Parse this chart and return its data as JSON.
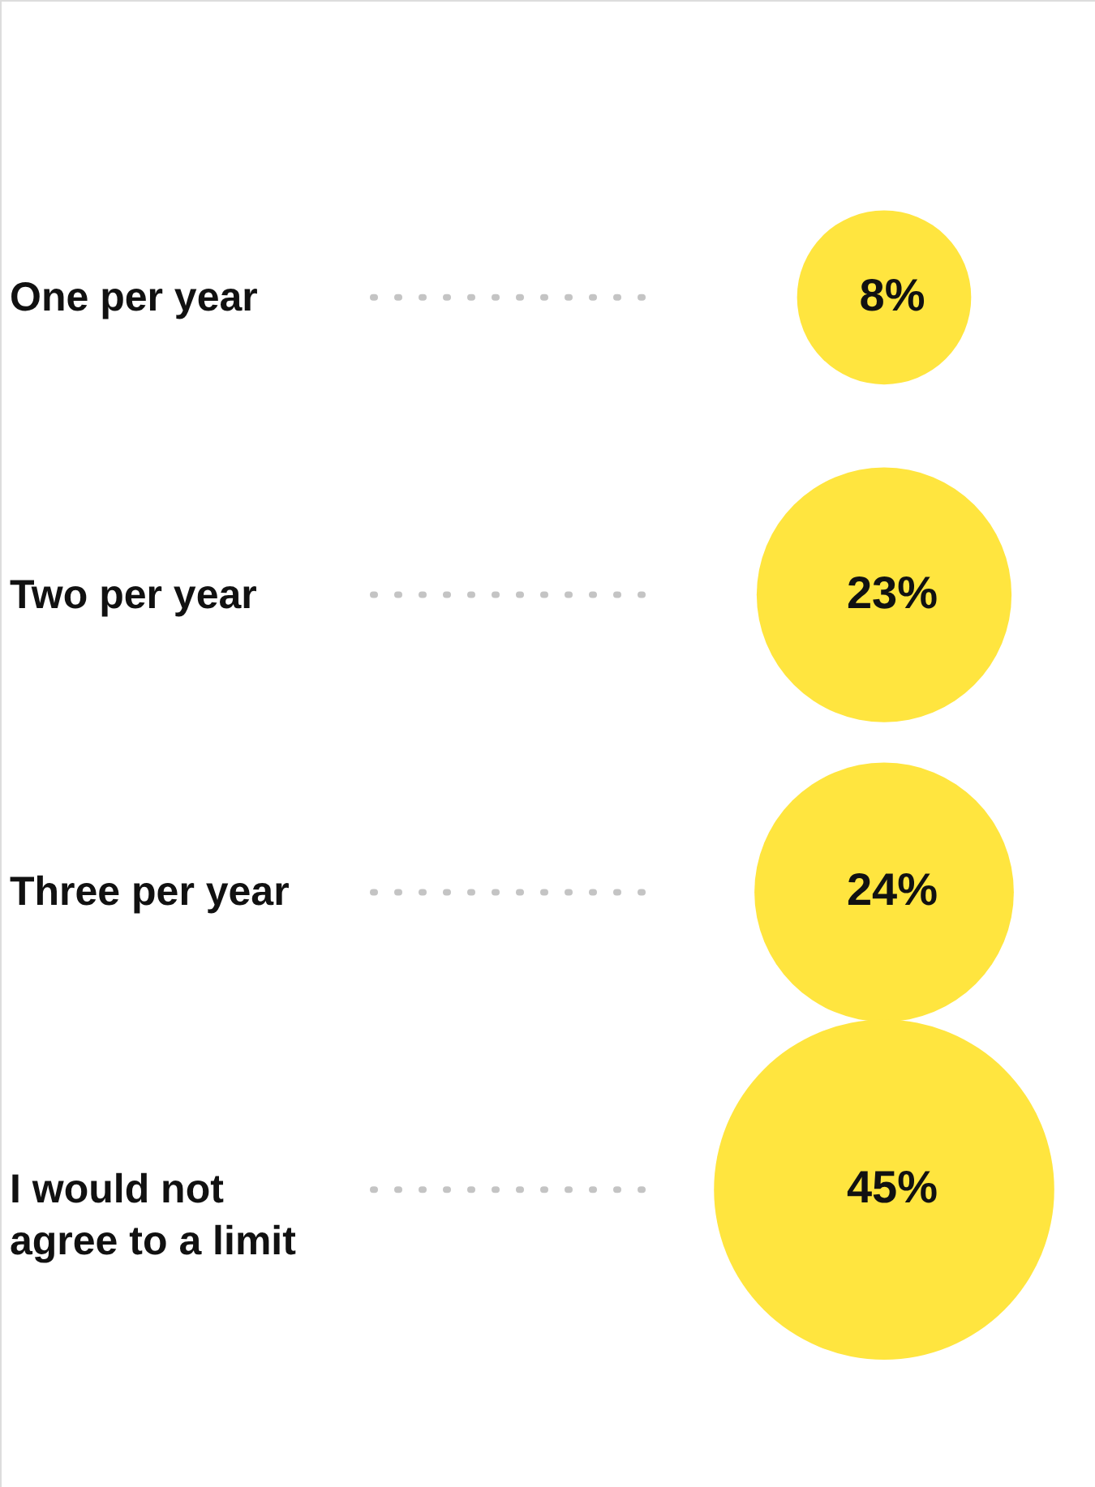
{
  "chart_data": {
    "type": "other",
    "categories": [
      "One per year",
      "Two per year",
      "Three per year",
      "I would not agree to a limit"
    ],
    "values": [
      8,
      23,
      24,
      45
    ],
    "value_labels": [
      "8%",
      "23%",
      "24%",
      "45%"
    ],
    "color": "#ffe53f"
  }
}
